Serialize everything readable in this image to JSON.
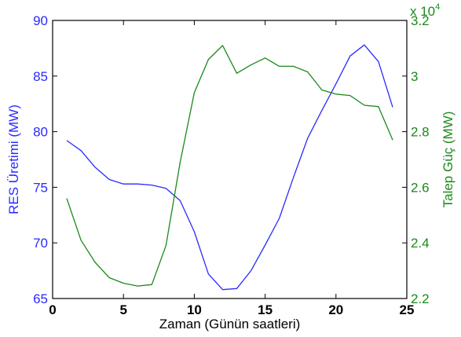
{
  "chart_data": {
    "type": "line",
    "xlabel": "Zaman (Günün saatleri)",
    "ylabel_left": "RES Üretimi (MW)",
    "ylabel_right": "Talep Güç (MW)",
    "right_multiplier": "x 10",
    "right_exponent": "4",
    "xlim": [
      0,
      25
    ],
    "ylim_left": [
      65,
      90
    ],
    "ylim_right": [
      2.2,
      3.2
    ],
    "x_ticks": [
      "0",
      "5",
      "10",
      "15",
      "20",
      "25"
    ],
    "y_left_ticks": [
      "65",
      "70",
      "75",
      "80",
      "85",
      "90"
    ],
    "y_right_ticks": [
      "2.2",
      "2.4",
      "2.6",
      "2.8",
      "3",
      "3.2"
    ],
    "grid": false,
    "colors": {
      "left": "#2a2aff",
      "right": "#1a8a1a",
      "axis": "#000000"
    },
    "x": [
      1,
      2,
      3,
      4,
      5,
      6,
      7,
      8,
      9,
      10,
      11,
      12,
      13,
      14,
      15,
      16,
      17,
      18,
      19,
      20,
      21,
      22,
      23,
      24
    ],
    "series": [
      {
        "axis": "left",
        "values": [
          79.2,
          78.3,
          76.8,
          75.7,
          75.3,
          75.3,
          75.2,
          74.9,
          73.8,
          71.0,
          67.2,
          65.8,
          65.9,
          67.5,
          69.8,
          72.2,
          75.9,
          79.4,
          81.9,
          84.3,
          86.8,
          87.8,
          86.3,
          82.2
        ]
      },
      {
        "axis": "right",
        "values": [
          2.56,
          2.41,
          2.33,
          2.275,
          2.255,
          2.245,
          2.25,
          2.39,
          2.69,
          2.94,
          3.06,
          3.11,
          3.01,
          3.04,
          3.065,
          3.035,
          3.035,
          3.015,
          2.95,
          2.935,
          2.93,
          2.895,
          2.89,
          2.77
        ]
      }
    ]
  }
}
